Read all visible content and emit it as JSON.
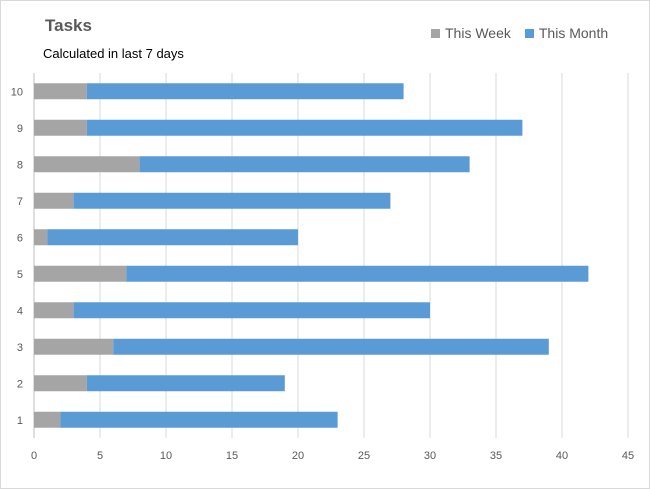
{
  "chart_data": {
    "type": "bar",
    "orientation": "horizontal",
    "stacked": true,
    "title": "Tasks",
    "subtitle": "Calculated in last 7 days",
    "categories": [
      "1",
      "2",
      "3",
      "4",
      "5",
      "6",
      "7",
      "8",
      "9",
      "10"
    ],
    "series": [
      {
        "name": "This Week",
        "color": "#a5a5a5",
        "values": [
          2,
          4,
          6,
          3,
          7,
          1,
          3,
          8,
          4,
          4
        ]
      },
      {
        "name": "This Month",
        "color": "#5b9bd5",
        "values": [
          21,
          15,
          33,
          27,
          35,
          19,
          24,
          25,
          33,
          24
        ]
      }
    ],
    "xlim": [
      0,
      45
    ],
    "xticks": [
      "0",
      "5",
      "10",
      "15",
      "20",
      "25",
      "30",
      "35",
      "40",
      "45"
    ],
    "grid": true,
    "legend_position": "top-right"
  }
}
